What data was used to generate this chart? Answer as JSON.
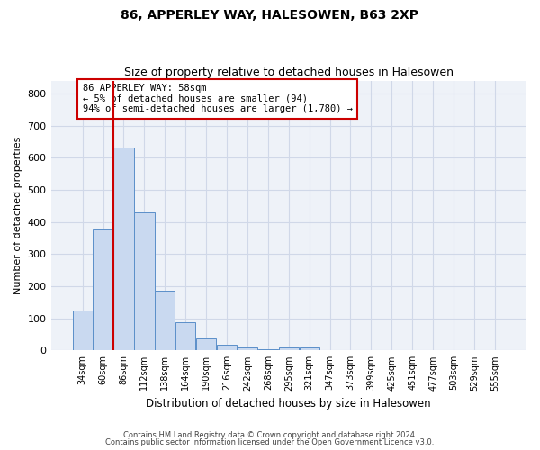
{
  "title1": "86, APPERLEY WAY, HALESOWEN, B63 2XP",
  "title2": "Size of property relative to detached houses in Halesowen",
  "xlabel": "Distribution of detached houses by size in Halesowen",
  "ylabel": "Number of detached properties",
  "bar_values": [
    125,
    375,
    630,
    430,
    185,
    88,
    37,
    18,
    10,
    5,
    10,
    10,
    0,
    0,
    0,
    0,
    0,
    0,
    0,
    0,
    0
  ],
  "bar_labels": [
    "34sqm",
    "60sqm",
    "86sqm",
    "112sqm",
    "138sqm",
    "164sqm",
    "190sqm",
    "216sqm",
    "242sqm",
    "268sqm",
    "295sqm",
    "321sqm",
    "347sqm",
    "373sqm",
    "399sqm",
    "425sqm",
    "451sqm",
    "477sqm",
    "503sqm",
    "529sqm",
    "555sqm"
  ],
  "bar_color": "#c9d9f0",
  "bar_edge_color": "#5b8fc9",
  "ylim": [
    0,
    840
  ],
  "yticks": [
    0,
    100,
    200,
    300,
    400,
    500,
    600,
    700,
    800
  ],
  "annotation_text_line1": "86 APPERLEY WAY: 58sqm",
  "annotation_text_line2": "← 5% of detached houses are smaller (94)",
  "annotation_text_line3": "94% of semi-detached houses are larger (1,780) →",
  "annotation_box_color": "#ffffff",
  "annotation_border_color": "#cc0000",
  "vline_color": "#cc0000",
  "vline_x": 1.5,
  "grid_color": "#d0d8e8",
  "bg_color": "#eef2f8",
  "footer1": "Contains HM Land Registry data © Crown copyright and database right 2024.",
  "footer2": "Contains public sector information licensed under the Open Government Licence v3.0."
}
